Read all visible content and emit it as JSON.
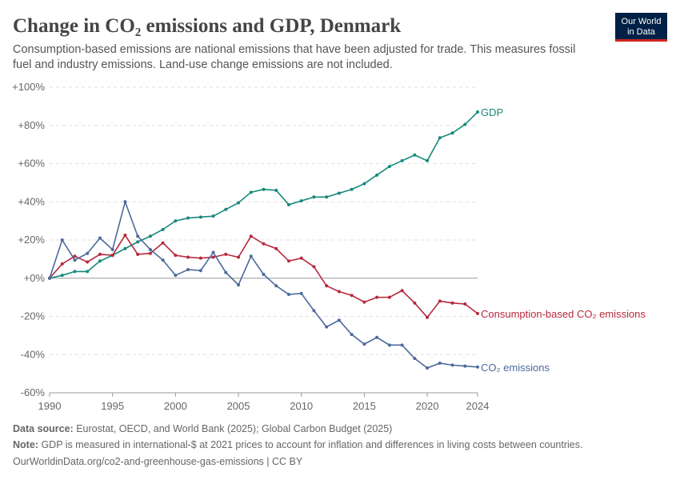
{
  "chart_data": {
    "type": "line",
    "title": "Change in CO₂ emissions and GDP, Denmark",
    "subtitle": [
      "Consumption-based emissions are national emissions that have been adjusted for trade. This measures fossil",
      "fuel and industry emissions. Land-use change emissions are not included."
    ],
    "logo": [
      "Our World",
      "in Data"
    ],
    "x": [
      1990,
      1991,
      1992,
      1993,
      1994,
      1995,
      1996,
      1997,
      1998,
      1999,
      2000,
      2001,
      2002,
      2003,
      2004,
      2005,
      2006,
      2007,
      2008,
      2009,
      2010,
      2011,
      2012,
      2013,
      2014,
      2015,
      2016,
      2017,
      2018,
      2019,
      2020,
      2021,
      2022,
      2023,
      2024
    ],
    "xlim": [
      1990,
      2024
    ],
    "xticks": [
      1990,
      1995,
      2000,
      2005,
      2010,
      2015,
      2020,
      2024
    ],
    "ylim": [
      -60,
      100
    ],
    "yticks": [
      {
        "value": 100,
        "label": "+100%"
      },
      {
        "value": 80,
        "label": "+80%"
      },
      {
        "value": 60,
        "label": "+60%"
      },
      {
        "value": 40,
        "label": "+40%"
      },
      {
        "value": 20,
        "label": "+20%"
      },
      {
        "value": 0,
        "label": "+0%"
      },
      {
        "value": -20,
        "label": "-20%"
      },
      {
        "value": -40,
        "label": "-40%"
      },
      {
        "value": -60,
        "label": "-60%"
      }
    ],
    "grid": true,
    "series": [
      {
        "name": "GDP",
        "color": "#17897b",
        "values": [
          0,
          1.5,
          3.5,
          3.5,
          9,
          12,
          15.5,
          19,
          22,
          25.5,
          30,
          31.5,
          32,
          32.5,
          36,
          39.5,
          45,
          46.5,
          46,
          38.5,
          40.5,
          42.5,
          42.5,
          44.5,
          46.5,
          49.5,
          54,
          58.5,
          61.5,
          64.5,
          61.5,
          73.5,
          76,
          80.5,
          87
        ]
      },
      {
        "name": "Consumption-based CO₂ emissions",
        "color": "#b8283d",
        "values": [
          0,
          7.5,
          11.5,
          8.5,
          12.5,
          12,
          22.5,
          12.5,
          13,
          18.5,
          12,
          11,
          10.5,
          11,
          12.5,
          11,
          22,
          18,
          15.5,
          9,
          10.5,
          6,
          -4,
          -7,
          -9,
          -12.5,
          -10,
          -10,
          -6.5,
          -13,
          -20.5,
          -12,
          -13,
          -13.5,
          -18.5
        ]
      },
      {
        "name": "CO₂ emissions",
        "color": "#4c6a9c",
        "values": [
          0,
          20,
          9.5,
          13,
          21,
          15,
          40,
          22,
          15,
          9.5,
          1.5,
          4.5,
          4,
          13.5,
          3,
          -3.5,
          11.5,
          2,
          -4,
          -8.5,
          -8,
          -17,
          -25.5,
          -22,
          -29.5,
          -34.5,
          -31,
          -35,
          -35,
          -42,
          -47,
          -44.5,
          -45.5,
          -46,
          -46.5
        ]
      }
    ],
    "source_label": "Data source:",
    "source": "Eurostat, OECD, and World Bank (2025); Global Carbon Budget (2025)",
    "note_label": "Note:",
    "note": "GDP is measured in international-$ at 2021 prices to account for inflation and differences in living costs between countries.",
    "url": "OurWorldinData.org/co2-and-greenhouse-gas-emissions | CC BY"
  }
}
